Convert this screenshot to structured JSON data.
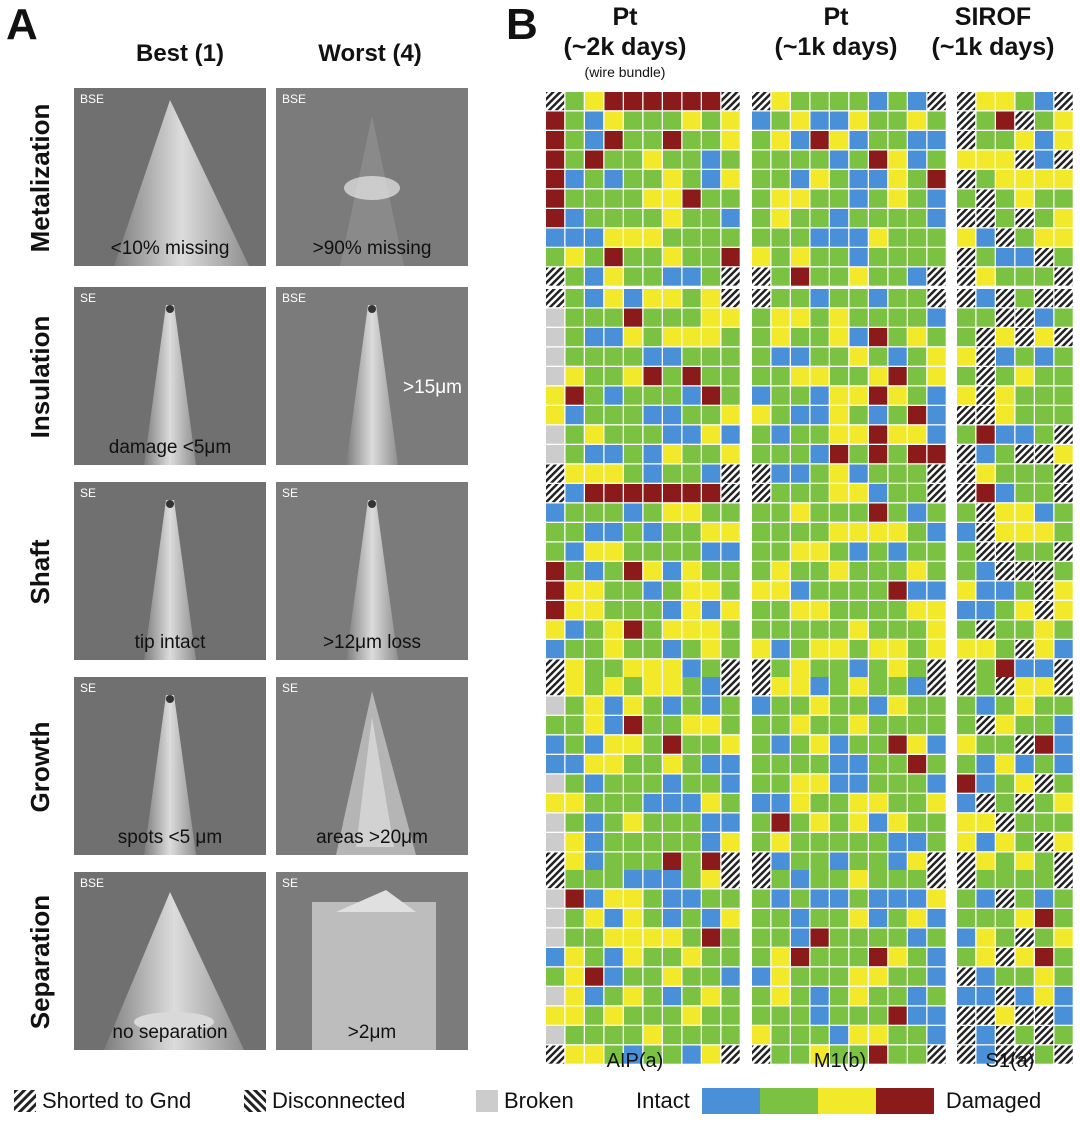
{
  "panel_a": {
    "letter": "A",
    "best_label": "Best (1)",
    "worst_label": "Worst (4)",
    "rows": [
      {
        "name": "Metalization",
        "best": {
          "mode": "BSE",
          "caption": "<10% missing"
        },
        "worst": {
          "mode": "BSE",
          "caption": ">90% missing"
        }
      },
      {
        "name": "Insulation",
        "best": {
          "mode": "SE",
          "caption": "damage <5μm"
        },
        "worst": {
          "mode": "BSE",
          "caption": ">15μm"
        }
      },
      {
        "name": "Shaft",
        "best": {
          "mode": "SE",
          "caption": "tip intact"
        },
        "worst": {
          "mode": "SE",
          "caption": ">12μm loss"
        }
      },
      {
        "name": "Growth",
        "best": {
          "mode": "SE",
          "caption": "spots <5 μm"
        },
        "worst": {
          "mode": "SE",
          "caption": "areas >20μm"
        }
      },
      {
        "name": "Separation",
        "best": {
          "mode": "BSE",
          "caption": "no separation"
        },
        "worst": {
          "mode": "SE",
          "caption": ">2μm"
        }
      }
    ]
  },
  "panel_b": {
    "letter": "B",
    "arrays": [
      {
        "material": "Pt",
        "duration": "(~2k days)",
        "note": "(wire bundle)",
        "label": "AIP(a)"
      },
      {
        "material": "Pt",
        "duration": "(~1k days)",
        "note": "",
        "label": "M1(b)"
      },
      {
        "material": "SIROF",
        "duration": "(~1k days)",
        "note": "",
        "label": "S1(a)"
      }
    ]
  },
  "legend": {
    "shorted": "Shorted to Gnd",
    "disconnected": "Disconnected",
    "broken": "Broken",
    "intact": "Intact",
    "damaged": "Damaged"
  },
  "colors": {
    "score1": "#4a90d9",
    "score2": "#7cc242",
    "score3": "#f2e92b",
    "score4": "#8b1a1a",
    "broken": "#cccccc",
    "hatch": "#222222"
  }
}
